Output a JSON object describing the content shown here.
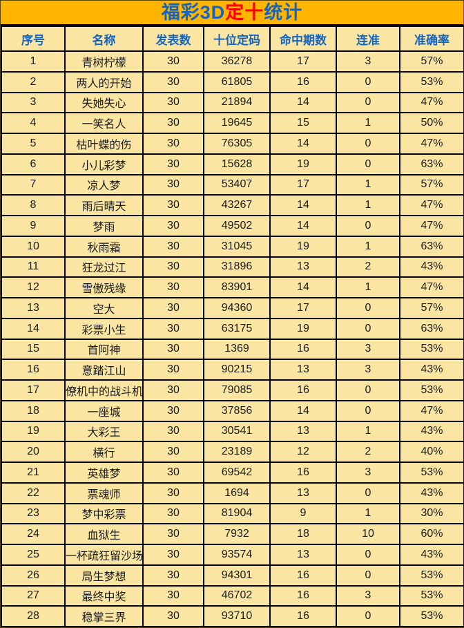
{
  "colors": {
    "page_background": "#FFB400",
    "cell_background": "#FAE6A2",
    "header_text_blue": "#1565C0",
    "title_blue": "#1565C0",
    "title_red": "#FF0000",
    "border": "#000000",
    "data_text": "#1A1A1A"
  },
  "title": {
    "part1": "福彩3D",
    "part2": "定十",
    "part3": "统计"
  },
  "table": {
    "columns": [
      "序号",
      "名称",
      "发表数",
      "十位定码",
      "命中期数",
      "连准",
      "准确率"
    ],
    "rows": [
      [
        1,
        "青树柠檬",
        30,
        36278,
        17,
        3,
        "57%"
      ],
      [
        2,
        "两人的开始",
        30,
        61805,
        16,
        0,
        "53%"
      ],
      [
        3,
        "失她失心",
        30,
        21894,
        14,
        0,
        "47%"
      ],
      [
        4,
        "一笑名人",
        30,
        19645,
        15,
        1,
        "50%"
      ],
      [
        5,
        "枯叶蝶的伤",
        30,
        76305,
        14,
        0,
        "47%"
      ],
      [
        6,
        "小儿彩梦",
        30,
        15628,
        19,
        0,
        "63%"
      ],
      [
        7,
        "凉人梦",
        30,
        53407,
        17,
        1,
        "57%"
      ],
      [
        8,
        "雨后晴天",
        30,
        43267,
        14,
        1,
        "47%"
      ],
      [
        9,
        "梦雨",
        30,
        49502,
        14,
        0,
        "47%"
      ],
      [
        10,
        "秋雨霜",
        30,
        31045,
        19,
        1,
        "63%"
      ],
      [
        11,
        "狂龙过江",
        30,
        31896,
        13,
        2,
        "43%"
      ],
      [
        12,
        "雪傲残缘",
        30,
        83901,
        14,
        1,
        "47%"
      ],
      [
        13,
        "空大",
        30,
        94360,
        17,
        0,
        "57%"
      ],
      [
        14,
        "彩票小生",
        30,
        63175,
        19,
        0,
        "63%"
      ],
      [
        15,
        "首阿神",
        30,
        1369,
        16,
        3,
        "53%"
      ],
      [
        16,
        "意踏江山",
        30,
        90215,
        13,
        3,
        "43%"
      ],
      [
        17,
        "僚机中的战斗机",
        30,
        79085,
        16,
        0,
        "53%"
      ],
      [
        18,
        "一座城",
        30,
        37856,
        14,
        0,
        "47%"
      ],
      [
        19,
        "大彩王",
        30,
        30541,
        13,
        1,
        "43%"
      ],
      [
        20,
        "横行",
        30,
        23189,
        12,
        2,
        "40%"
      ],
      [
        21,
        "英雄梦",
        30,
        69542,
        16,
        3,
        "53%"
      ],
      [
        22,
        "票魂师",
        30,
        1694,
        13,
        0,
        "43%"
      ],
      [
        23,
        "梦中彩票",
        30,
        81904,
        9,
        1,
        "30%"
      ],
      [
        24,
        "血狱生",
        30,
        7932,
        18,
        10,
        "60%"
      ],
      [
        25,
        "一杯疏狂留沙场",
        30,
        93574,
        13,
        0,
        "43%"
      ],
      [
        26,
        "局生梦想",
        30,
        94301,
        16,
        0,
        "53%"
      ],
      [
        27,
        "最终中奖",
        30,
        46702,
        16,
        3,
        "53%"
      ],
      [
        28,
        "稳掌三界",
        30,
        93710,
        16,
        0,
        "53%"
      ]
    ]
  }
}
